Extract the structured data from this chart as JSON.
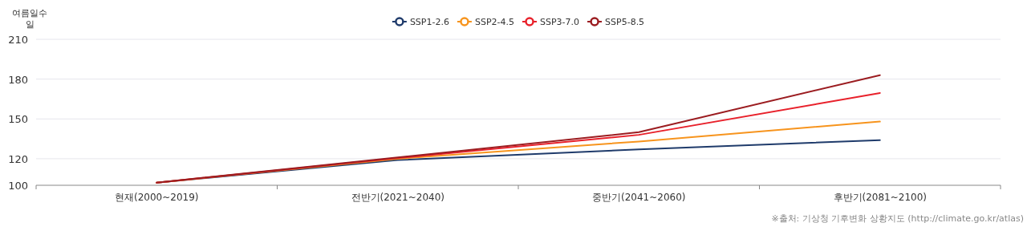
{
  "chart_data": {
    "type": "line",
    "ylabel": "여름일수\n일",
    "categories": [
      "현재(2000~2019)",
      "전반기(2021~2040)",
      "중반기(2041~2060)",
      "후반기(2081~2100)"
    ],
    "series": [
      {
        "name": "SSP1-2.6",
        "color": "#1f3b6b",
        "values": [
          102,
          119,
          127,
          134
        ]
      },
      {
        "name": "SSP2-4.5",
        "color": "#f7941d",
        "values": [
          102,
          120,
          133,
          148
        ]
      },
      {
        "name": "SSP3-7.0",
        "color": "#e8212b",
        "values": [
          102,
          120.5,
          138,
          169.5
        ]
      },
      {
        "name": "SSP5-8.5",
        "color": "#9b1c20",
        "values": [
          102,
          121,
          140,
          183
        ]
      }
    ],
    "ylim": [
      100,
      210
    ],
    "yticks": [
      100,
      120,
      150,
      180,
      210
    ],
    "grid": "y",
    "legend": "top",
    "marker": "none",
    "line_style": "solid",
    "annotations": [
      "※출처: 기상청 기후변화 상황지도 (http://climate.go.kr/atlas)"
    ]
  }
}
